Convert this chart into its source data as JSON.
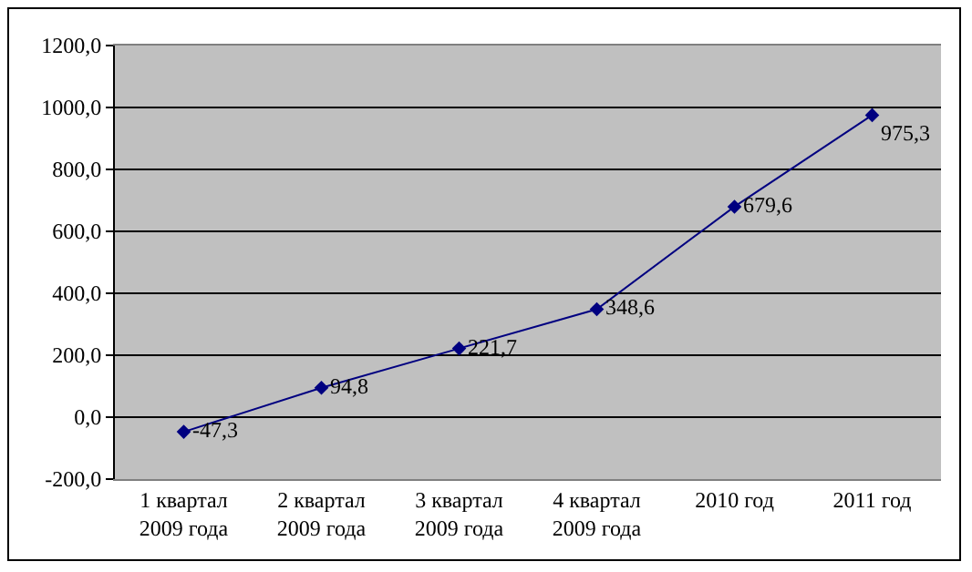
{
  "chart_data": {
    "type": "line",
    "categories": [
      "1 квартал\n2009 года",
      "2 квартал\n2009 года",
      "3 квартал\n2009 года",
      "4 квартал\n2009 года",
      "2010 год",
      "2011 год"
    ],
    "series": [
      {
        "color": "#000080",
        "values": [
          -47.3,
          94.8,
          221.7,
          348.6,
          679.6,
          975.3
        ],
        "value_labels": [
          "-47,3",
          "94,8",
          "221,7",
          "348,6",
          "679,6",
          "975,3"
        ]
      }
    ],
    "ylim": [
      -200,
      1200
    ],
    "yticks": [
      {
        "value": -200,
        "label": "-200,0"
      },
      {
        "value": 0,
        "label": "0,0"
      },
      {
        "value": 200,
        "label": "200,0"
      },
      {
        "value": 400,
        "label": "400,0"
      },
      {
        "value": 600,
        "label": "600,0"
      },
      {
        "value": 800,
        "label": "800,0"
      },
      {
        "value": 1000,
        "label": "1000,0"
      },
      {
        "value": 1200,
        "label": "1200,0"
      }
    ],
    "grid": "y",
    "marker": "diamond",
    "line_style": "solid"
  }
}
